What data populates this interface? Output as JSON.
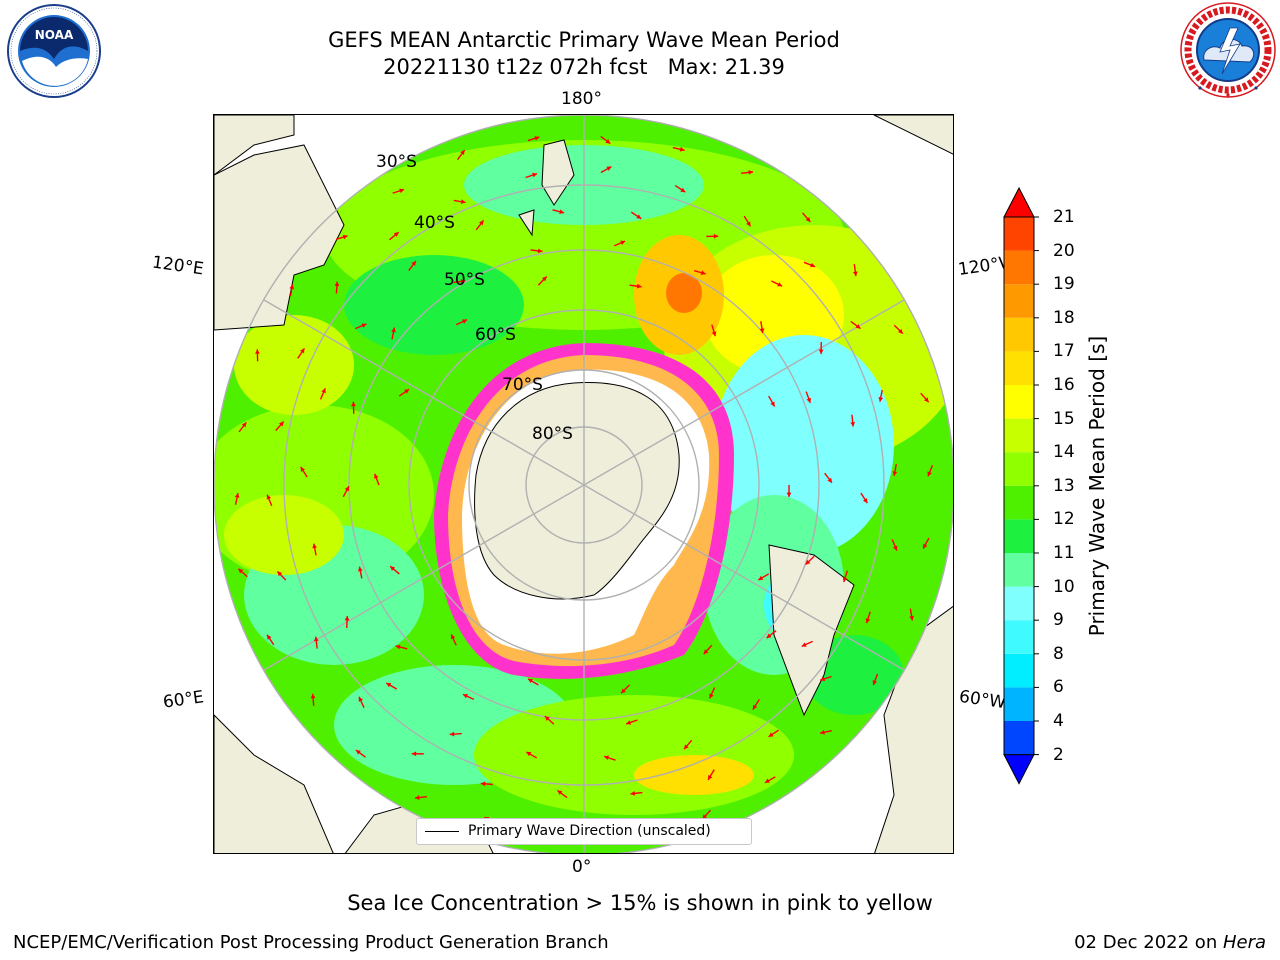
{
  "title": {
    "line1": "GEFS MEAN Antarctic Primary Wave Mean Period",
    "line2": "20221130 t12z 072h fcst   Max: 21.39"
  },
  "logos": {
    "left": {
      "text": "NOAA",
      "ring_text": "NATIONAL OCEANIC AND ATMOSPHERIC ADMINISTRATION · U.S. DEPARTMENT OF COMMERCE"
    },
    "right": {
      "ring_text": "NATIONAL WEATHER SERVICE"
    }
  },
  "map": {
    "longitude_labels": {
      "top": "180°",
      "bottom": "0°",
      "upper_left": "120°E",
      "upper_right": "120°W",
      "lower_left": "60°E",
      "lower_right": "60°W"
    },
    "latitude_labels": [
      "30°S",
      "40°S",
      "50°S",
      "60°S",
      "70°S",
      "80°S"
    ],
    "colors": {
      "land": "#efeedb",
      "ice_edge": "#ff33cc",
      "vector": "#ff0000",
      "graticule": "#b0b0b0"
    }
  },
  "legend": {
    "label": "Primary Wave Direction (unscaled)"
  },
  "colorbar": {
    "label": "Primary Wave Mean Period [s]",
    "ticks": [
      "2",
      "4",
      "6",
      "8",
      "9",
      "10",
      "11",
      "12",
      "13",
      "14",
      "15",
      "16",
      "17",
      "18",
      "19",
      "20",
      "21"
    ],
    "colors": [
      "#0046ff",
      "#00b4ff",
      "#00eeff",
      "#3ffaff",
      "#80ffff",
      "#60ffa0",
      "#1ef040",
      "#4ef000",
      "#90ff00",
      "#c8ff00",
      "#ffff00",
      "#ffe000",
      "#ffc800",
      "#ff9900",
      "#ff7700",
      "#ff4400"
    ],
    "under_color": "#0000ff",
    "over_color": "#ff0000"
  },
  "note": "Sea Ice Concentration > 15% is shown in pink to yellow",
  "footer": {
    "left": "NCEP/EMC/Verification Post Processing Product Generation Branch",
    "right_prefix": "02 Dec 2022 on ",
    "right_host": "Hera"
  }
}
